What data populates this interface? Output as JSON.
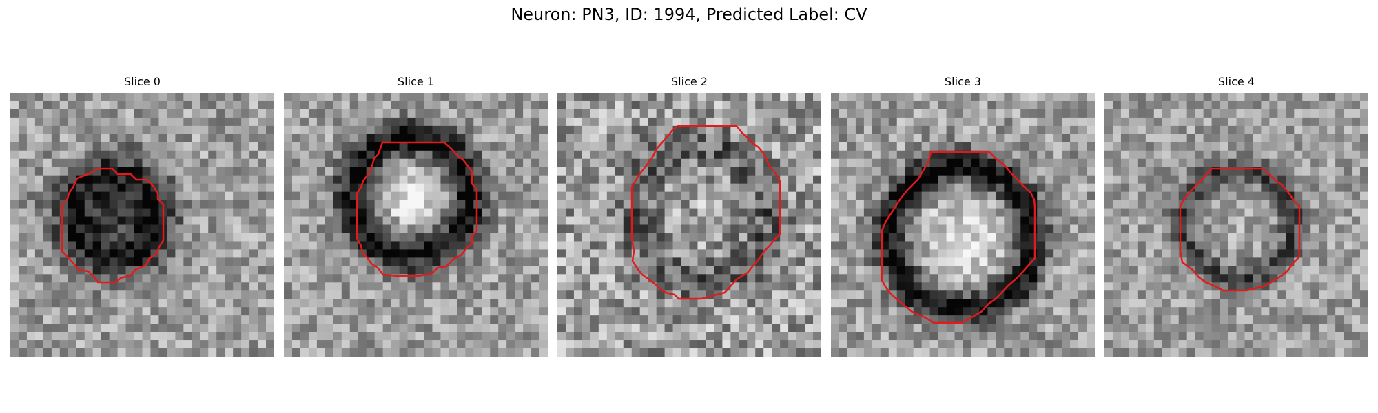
{
  "figure": {
    "title": "Neuron: PN3, ID: 1994, Predicted Label: CV"
  },
  "colors": {
    "contour": "#e31a1c",
    "background": "#ffffff"
  },
  "panels": [
    {
      "title": "Slice 0"
    },
    {
      "title": "Slice 1"
    },
    {
      "title": "Slice 2"
    },
    {
      "title": "Slice 3"
    },
    {
      "title": "Slice 4"
    }
  ]
}
